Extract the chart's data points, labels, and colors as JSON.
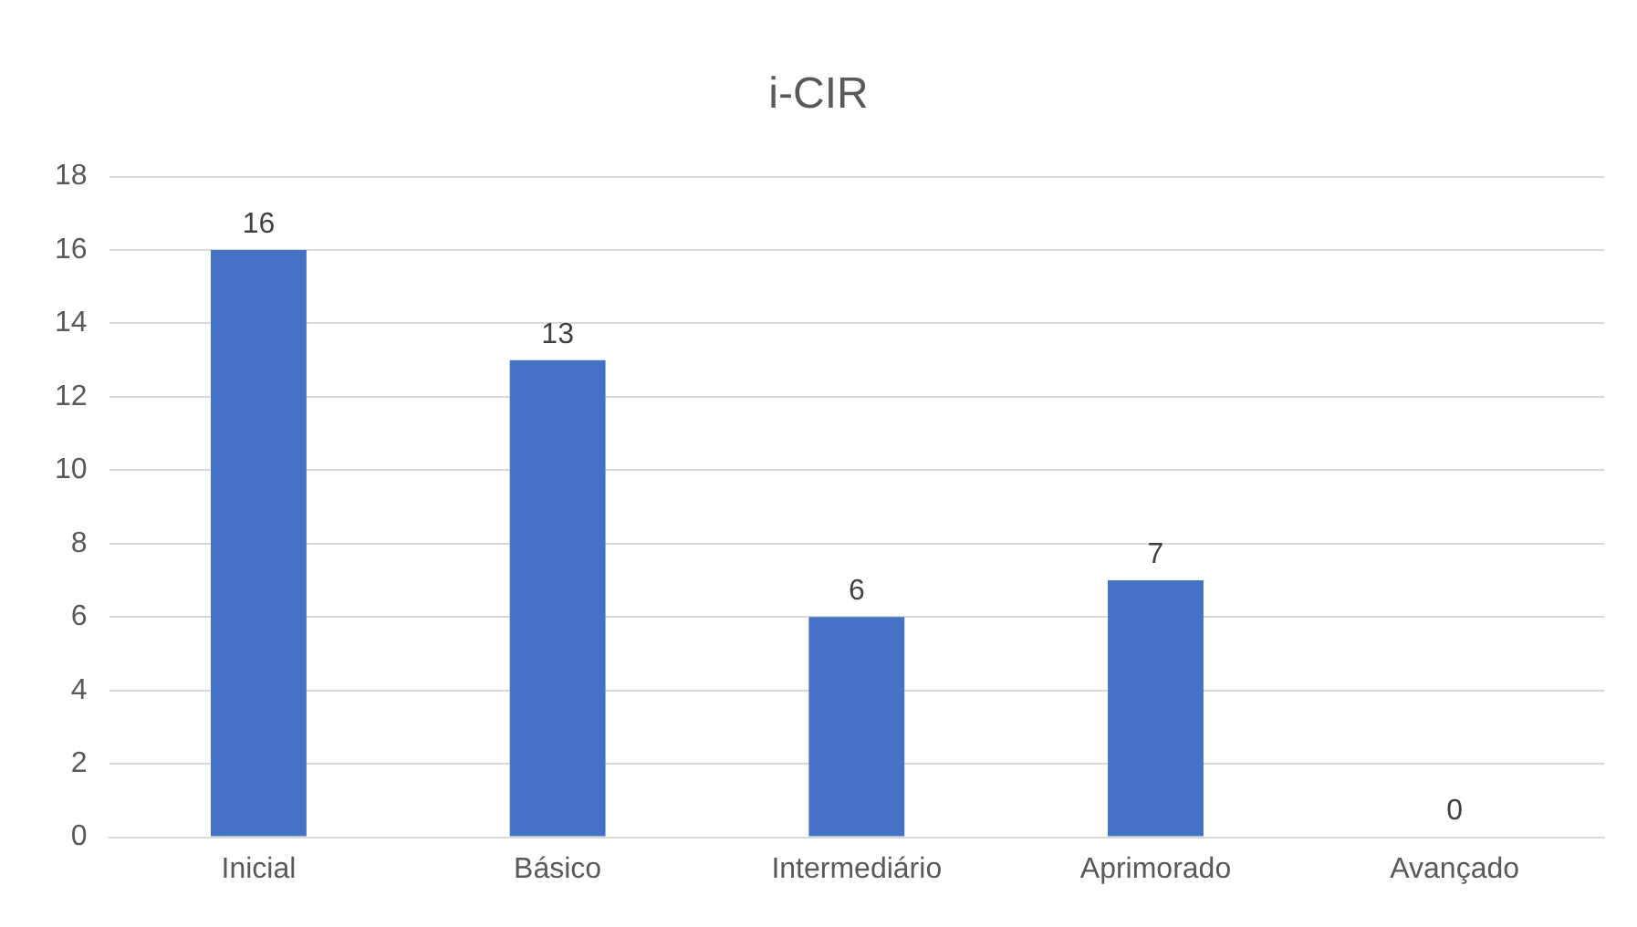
{
  "chart_data": {
    "type": "bar",
    "title": "i-CIR",
    "categories": [
      "Inicial",
      "Básico",
      "Intermediário",
      "Aprimorado",
      "Avançado"
    ],
    "values": [
      16,
      13,
      6,
      7,
      0
    ],
    "color": "#4472c4",
    "ylim": [
      0,
      18
    ],
    "yticks": [
      0,
      2,
      4,
      6,
      8,
      10,
      12,
      14,
      16,
      18
    ],
    "grid": "y",
    "data_labels": true,
    "legend": false
  }
}
